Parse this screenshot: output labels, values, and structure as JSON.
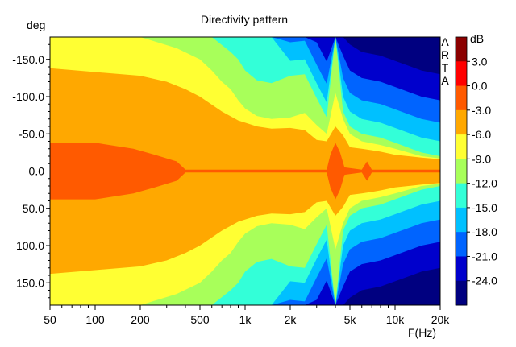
{
  "chart_data": {
    "type": "heatmap",
    "title": "Directivity pattern",
    "xlabel": "F(Hz)",
    "ylabel": "deg",
    "watermark": "ARTA",
    "x_scale": "log",
    "xlim": [
      50,
      20000
    ],
    "ylim": [
      -180,
      180
    ],
    "y_inverted": true,
    "x_ticks": [
      {
        "value": 50,
        "label": "50"
      },
      {
        "value": 100,
        "label": "100"
      },
      {
        "value": 200,
        "label": "200"
      },
      {
        "value": 500,
        "label": "500"
      },
      {
        "value": 1000,
        "label": "1k"
      },
      {
        "value": 2000,
        "label": "2k"
      },
      {
        "value": 5000,
        "label": "5k"
      },
      {
        "value": 10000,
        "label": "10k"
      },
      {
        "value": 20000,
        "label": "20k"
      }
    ],
    "y_ticks": [
      {
        "value": -150,
        "label": "-150.0"
      },
      {
        "value": -100,
        "label": "-100.0"
      },
      {
        "value": -50,
        "label": "-50.0"
      },
      {
        "value": 0,
        "label": "0.0"
      },
      {
        "value": 50,
        "label": "50.0"
      },
      {
        "value": 100,
        "label": "100.0"
      },
      {
        "value": 150,
        "label": "150.0"
      }
    ],
    "colorbar": {
      "unit": "dB",
      "levels": [
        {
          "from": 3,
          "to": 6,
          "color": "#8b0000"
        },
        {
          "from": 0,
          "to": 3,
          "color": "#ff0000"
        },
        {
          "from": -3,
          "to": 0,
          "color": "#ff5a00"
        },
        {
          "from": -6,
          "to": -3,
          "color": "#ffa800"
        },
        {
          "from": -9,
          "to": -6,
          "color": "#ffff33"
        },
        {
          "from": -12,
          "to": -9,
          "color": "#a8ff5a"
        },
        {
          "from": -15,
          "to": -12,
          "color": "#33ffd8"
        },
        {
          "from": -18,
          "to": -15,
          "color": "#00c0ff"
        },
        {
          "from": -21,
          "to": -18,
          "color": "#0064ff"
        },
        {
          "from": -24,
          "to": -21,
          "color": "#0000cc"
        },
        {
          "from": -27,
          "to": -24,
          "color": "#000080"
        }
      ],
      "labels": [
        "3.0",
        "0.0",
        "-3.0",
        "-6.0",
        "-9.0",
        "-12.0",
        "-15.0",
        "-18.0",
        "-21.0",
        "-24.0"
      ]
    },
    "contours": [
      {
        "level": -3,
        "halfwidth": [
          [
            50,
            138
          ],
          [
            100,
            133
          ],
          [
            200,
            128
          ],
          [
            300,
            120
          ],
          [
            400,
            110
          ],
          [
            500,
            100
          ],
          [
            700,
            80
          ],
          [
            900,
            68
          ],
          [
            1200,
            60
          ],
          [
            1500,
            57
          ],
          [
            2000,
            58
          ],
          [
            2500,
            55
          ],
          [
            3000,
            42
          ],
          [
            3500,
            40
          ],
          [
            4000,
            60
          ],
          [
            4500,
            48
          ],
          [
            5000,
            32
          ],
          [
            6000,
            30
          ],
          [
            7000,
            28
          ],
          [
            8000,
            26
          ],
          [
            10000,
            22
          ],
          [
            15000,
            18
          ],
          [
            20000,
            16
          ]
        ]
      },
      {
        "level": 0,
        "halfwidth": [
          [
            50,
            38
          ],
          [
            100,
            38
          ],
          [
            180,
            30
          ],
          [
            250,
            22
          ],
          [
            350,
            13
          ],
          [
            400,
            2
          ],
          [
            3500,
            2
          ],
          [
            3700,
            22
          ],
          [
            4000,
            38
          ],
          [
            4300,
            25
          ],
          [
            4600,
            5
          ],
          [
            6000,
            2
          ],
          [
            6500,
            13
          ],
          [
            7000,
            2
          ],
          [
            20000,
            2
          ]
        ]
      },
      {
        "level": -6,
        "halfwidth": [
          [
            50,
            180
          ],
          [
            200,
            180
          ],
          [
            350,
            165
          ],
          [
            500,
            150
          ],
          [
            600,
            135
          ],
          [
            700,
            120
          ],
          [
            800,
            110
          ],
          [
            900,
            95
          ],
          [
            1000,
            84
          ],
          [
            1200,
            74
          ],
          [
            1500,
            70
          ],
          [
            2000,
            72
          ],
          [
            2500,
            78
          ],
          [
            3000,
            62
          ],
          [
            3500,
            50
          ],
          [
            4000,
            105
          ],
          [
            4500,
            70
          ],
          [
            5000,
            50
          ],
          [
            6000,
            40
          ],
          [
            8000,
            35
          ],
          [
            10000,
            30
          ],
          [
            15000,
            20
          ],
          [
            20000,
            17
          ]
        ]
      },
      {
        "level": -9,
        "halfwidth": [
          [
            50,
            180
          ],
          [
            600,
            180
          ],
          [
            800,
            160
          ],
          [
            900,
            150
          ],
          [
            1000,
            135
          ],
          [
            1200,
            122
          ],
          [
            1500,
            118
          ],
          [
            2000,
            128
          ],
          [
            2500,
            130
          ],
          [
            3000,
            98
          ],
          [
            3500,
            72
          ],
          [
            4000,
            180
          ],
          [
            4500,
            80
          ],
          [
            5000,
            60
          ],
          [
            6000,
            50
          ],
          [
            8000,
            45
          ],
          [
            10000,
            38
          ],
          [
            15000,
            25
          ],
          [
            20000,
            20
          ]
        ]
      }
    ]
  }
}
